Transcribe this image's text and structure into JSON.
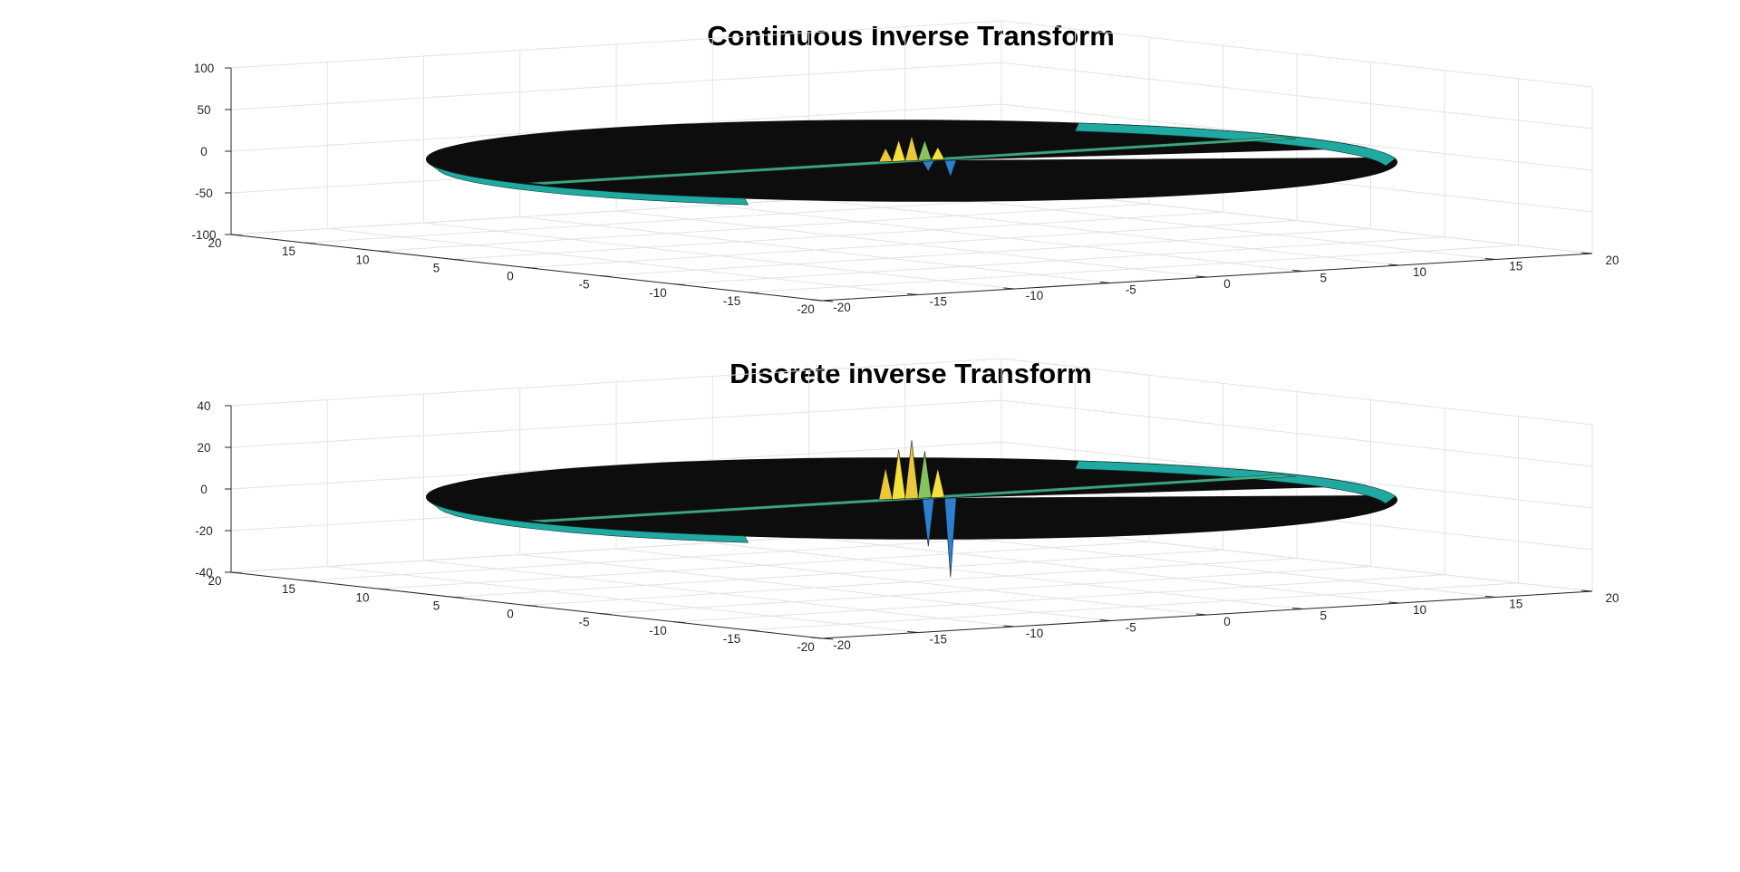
{
  "figure": {
    "background": "#ffffff",
    "axis_color": "#262626",
    "grid_color": "#e3e3e3",
    "colormap": "parula",
    "surface_colors": [
      "#0d0d0d",
      "#1fa9a0",
      "#43b58c",
      "#86c45d",
      "#e9c83b",
      "#f4e13a",
      "#2d7fd0"
    ]
  },
  "chart_data": [
    {
      "type": "surface",
      "title": "Continuous Inverse Transform",
      "xlabel": "",
      "ylabel": "",
      "zlabel": "",
      "xlim": [
        -20,
        20
      ],
      "ylim": [
        -20,
        20
      ],
      "zlim": [
        -100,
        100
      ],
      "xticks": [
        -20,
        -15,
        -10,
        -5,
        0,
        5,
        10,
        15,
        20
      ],
      "yticks": [
        -20,
        -15,
        -10,
        -5,
        0,
        5,
        10,
        15,
        20
      ],
      "zticks": [
        -100,
        -50,
        0,
        50,
        100
      ],
      "grid": true,
      "legend": "none",
      "surface": {
        "shape": "disk",
        "radius": 20,
        "base_value": 0,
        "peak_value": 30,
        "trough_value": -20
      }
    },
    {
      "type": "surface",
      "title": "Discrete inverse Transform",
      "xlabel": "",
      "ylabel": "",
      "zlabel": "",
      "xlim": [
        -20,
        20
      ],
      "ylim": [
        -20,
        20
      ],
      "zlim": [
        -40,
        40
      ],
      "xticks": [
        -20,
        -15,
        -10,
        -5,
        0,
        5,
        10,
        15,
        20
      ],
      "yticks": [
        -20,
        -15,
        -10,
        -5,
        0,
        5,
        10,
        15,
        20
      ],
      "zticks": [
        -40,
        -20,
        0,
        20,
        40
      ],
      "grid": true,
      "legend": "none",
      "surface": {
        "shape": "disk",
        "radius": 20,
        "base_value": 0,
        "peak_value": 28,
        "trough_value": -38
      }
    }
  ]
}
